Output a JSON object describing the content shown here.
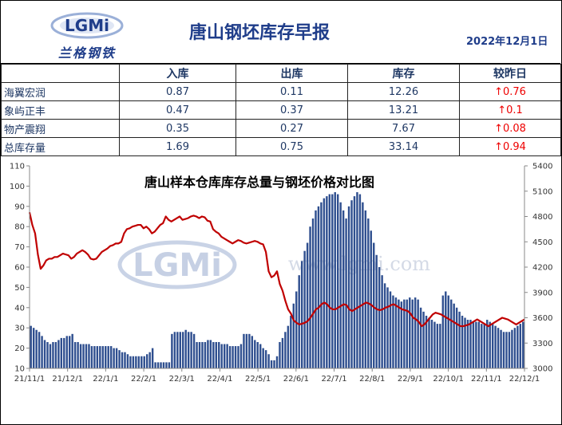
{
  "header": {
    "logo_text": "LGMi",
    "logo_cn": "兰格钢铁",
    "title": "唐山钢坯库存早报",
    "date": "2022年12月1日"
  },
  "table": {
    "columns": [
      "入库",
      "出库",
      "库存",
      "较昨日"
    ],
    "rows": [
      {
        "name": "海翼宏润",
        "in": "0.87",
        "out": "0.11",
        "stock": "12.26",
        "change": "↑0.76"
      },
      {
        "name": "象屿正丰",
        "in": "0.47",
        "out": "0.37",
        "stock": "13.21",
        "change": "↑0.1"
      },
      {
        "name": "物产震翔",
        "in": "0.35",
        "out": "0.27",
        "stock": "7.67",
        "change": "↑0.08"
      },
      {
        "name": "总库存量",
        "in": "1.69",
        "out": "0.75",
        "stock": "33.14",
        "change": "↑0.94"
      }
    ]
  },
  "colors": {
    "bar": "#2f4f8f",
    "line": "#c00000",
    "accent": "#1f3d8a",
    "up": "#e00000"
  },
  "chart_data": {
    "type": "bar+line",
    "title": "唐山样本仓库库存总量与钢坯价格对比图",
    "watermark": "LGMi",
    "watermark_url": "www.lgmi.com",
    "x_ticks": [
      "21/11/1",
      "21/12/1",
      "22/1/1",
      "22/2/1",
      "22/3/1",
      "22/4/1",
      "22/5/1",
      "22/6/1",
      "22/7/1",
      "22/8/1",
      "22/9/1",
      "22/10/1",
      "22/11/1",
      "22/12/1"
    ],
    "y_left": {
      "min": 10,
      "max": 110,
      "ticks": [
        10,
        20,
        30,
        40,
        50,
        60,
        70,
        80,
        90,
        100,
        110
      ]
    },
    "y_right": {
      "min": 3000,
      "max": 5400,
      "ticks": [
        3000,
        3300,
        3600,
        3900,
        4200,
        4500,
        4800,
        5100,
        5400
      ]
    },
    "series": [
      {
        "kind": "bar",
        "axis": "left",
        "values": [
          31,
          30,
          29,
          28,
          26,
          24,
          23,
          22,
          23,
          23,
          24,
          25,
          25,
          26,
          26,
          27,
          23,
          23,
          22,
          22,
          22,
          22,
          21,
          21,
          21,
          21,
          21,
          21,
          21,
          21,
          20,
          20,
          19,
          18,
          18,
          17,
          16,
          16,
          16,
          16,
          16,
          16,
          17,
          18,
          20,
          13,
          13,
          13,
          13,
          13,
          13,
          27,
          28,
          28,
          28,
          28,
          29,
          28,
          28,
          27,
          23,
          23,
          23,
          23,
          24,
          24,
          23,
          23,
          23,
          22,
          22,
          22,
          21,
          21,
          21,
          21,
          22,
          27,
          27,
          27,
          26,
          24,
          23,
          22,
          20,
          19,
          17,
          14,
          14,
          16,
          23,
          25,
          28,
          31,
          36,
          42,
          48,
          56,
          63,
          68,
          72,
          80,
          84,
          88,
          90,
          92,
          94,
          95,
          96,
          96,
          97,
          96,
          92,
          88,
          84,
          90,
          93,
          95,
          97,
          96,
          92,
          88,
          84,
          78,
          72,
          66,
          60,
          56,
          52,
          50,
          48,
          46,
          45,
          44,
          43,
          44,
          44,
          45,
          44,
          45,
          44,
          40,
          38,
          36,
          35,
          34,
          33,
          32,
          32,
          46,
          48,
          46,
          44,
          42,
          40,
          38,
          36,
          35,
          34,
          34,
          33,
          33,
          33,
          32,
          32,
          34,
          33,
          32,
          31,
          30,
          29,
          28,
          28,
          28,
          29,
          30,
          31,
          32,
          33
        ]
      },
      {
        "kind": "line",
        "axis": "right",
        "values": [
          4850,
          4700,
          4600,
          4350,
          4180,
          4220,
          4280,
          4300,
          4300,
          4320,
          4320,
          4340,
          4360,
          4350,
          4340,
          4300,
          4320,
          4360,
          4380,
          4400,
          4380,
          4350,
          4300,
          4290,
          4300,
          4340,
          4380,
          4400,
          4420,
          4450,
          4460,
          4480,
          4480,
          4500,
          4600,
          4650,
          4660,
          4680,
          4690,
          4700,
          4700,
          4660,
          4680,
          4650,
          4600,
          4620,
          4660,
          4700,
          4720,
          4800,
          4760,
          4740,
          4760,
          4780,
          4800,
          4760,
          4770,
          4780,
          4800,
          4810,
          4800,
          4780,
          4800,
          4790,
          4750,
          4740,
          4650,
          4620,
          4600,
          4560,
          4540,
          4520,
          4500,
          4480,
          4500,
          4520,
          4510,
          4490,
          4480,
          4490,
          4500,
          4510,
          4500,
          4480,
          4470,
          4380,
          4150,
          4080,
          4100,
          4150,
          4000,
          3920,
          3800,
          3700,
          3650,
          3570,
          3540,
          3520,
          3530,
          3540,
          3560,
          3600,
          3650,
          3700,
          3720,
          3760,
          3780,
          3760,
          3720,
          3700,
          3700,
          3720,
          3740,
          3760,
          3750,
          3700,
          3680,
          3700,
          3720,
          3740,
          3760,
          3780,
          3770,
          3750,
          3720,
          3700,
          3690,
          3700,
          3720,
          3730,
          3750,
          3760,
          3740,
          3720,
          3700,
          3690,
          3680,
          3650,
          3600,
          3580,
          3550,
          3500,
          3520,
          3560,
          3600,
          3640,
          3660,
          3650,
          3640,
          3620,
          3600,
          3580,
          3560,
          3540,
          3520,
          3500,
          3500,
          3510,
          3520,
          3540,
          3560,
          3580,
          3560,
          3540,
          3520,
          3500,
          3520,
          3540,
          3560,
          3580,
          3600,
          3590,
          3580,
          3560,
          3540,
          3520,
          3540,
          3560,
          3580
        ]
      }
    ],
    "legend": "none",
    "grid": false
  }
}
